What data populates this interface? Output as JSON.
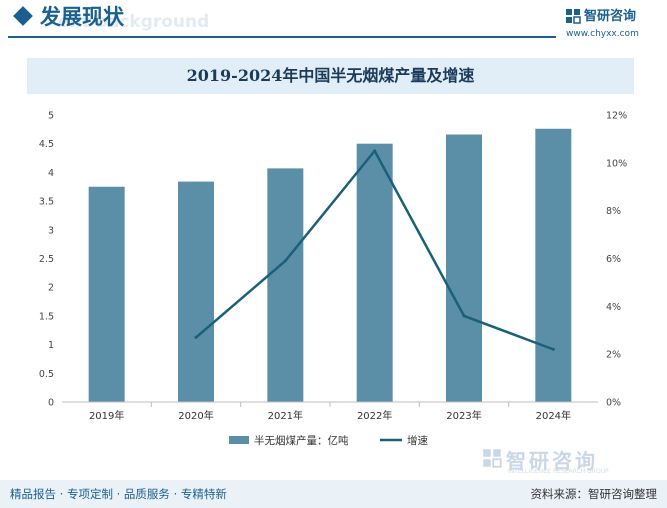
{
  "header": {
    "section_title": "发展现状",
    "ghost_text": "ent background",
    "brand_name": "智研咨询",
    "brand_url": "www.chyxx.com",
    "logo_icon": "zhiyan-logo-icon",
    "accent_color": "#1b5f8f"
  },
  "chart_data": {
    "type": "bar",
    "title": "2019-2024年中国半无烟煤产量及增速",
    "categories": [
      "2019年",
      "2020年",
      "2021年",
      "2022年",
      "2023年",
      "2024年"
    ],
    "series": [
      {
        "name": "半无烟煤产量：亿吨",
        "type": "bar",
        "axis": "left",
        "color": "#5b8fa8",
        "values": [
          3.75,
          3.84,
          4.07,
          4.5,
          4.66,
          4.76
        ]
      },
      {
        "name": "增速",
        "type": "line",
        "axis": "right",
        "color": "#1a6079",
        "values": [
          null,
          2.7,
          5.9,
          10.5,
          3.6,
          2.2
        ]
      }
    ],
    "y_left": {
      "min": 0,
      "max": 5,
      "ticks": [
        "0",
        "0.5",
        "1",
        "1.5",
        "2",
        "2.5",
        "3",
        "3.5",
        "4",
        "4.5",
        "5"
      ]
    },
    "y_right": {
      "min": 0,
      "max": 12,
      "ticks": [
        "0%",
        "2%",
        "4%",
        "6%",
        "8%",
        "10%",
        "12%"
      ]
    },
    "grid": false,
    "legend_position": "bottom"
  },
  "watermark": {
    "text": "智研咨询",
    "subtext": "INTELLIGENCE RESEARCH GROUP"
  },
  "footer": {
    "left_text": "精品报告 · 专项定制 · 品质服务 · 专精特新",
    "source_text": "资料来源：智研咨询整理"
  }
}
